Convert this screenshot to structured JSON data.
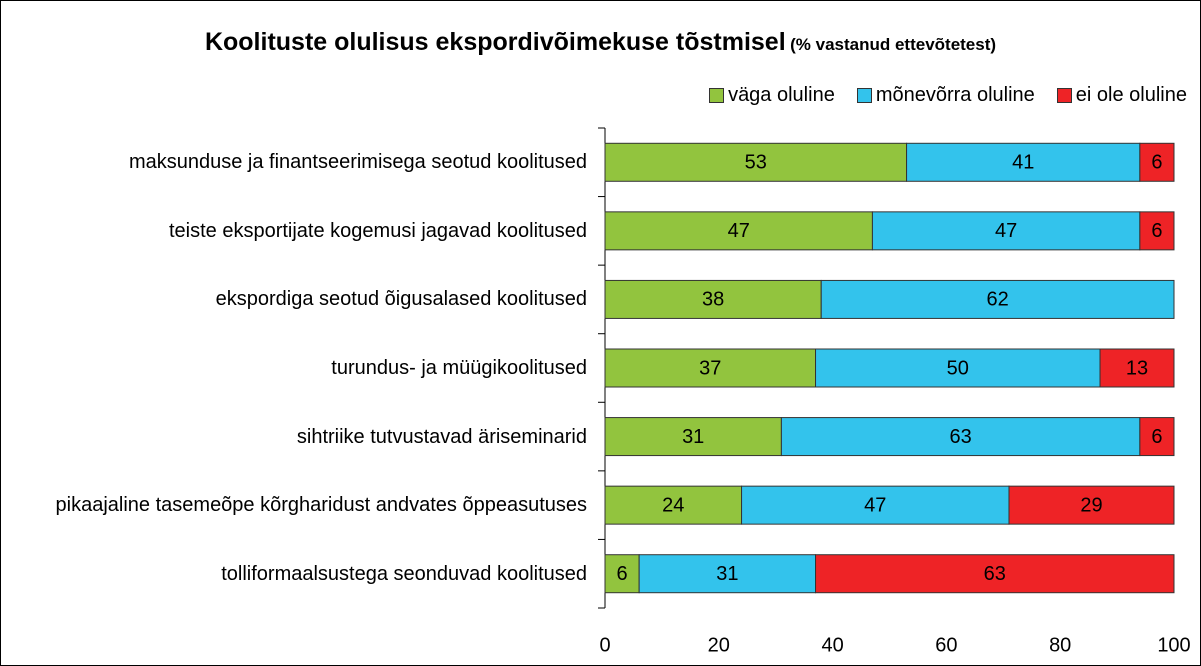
{
  "chart_data": {
    "type": "stacked-bar-horizontal",
    "title": "Koolituste olulisus ekspordivõimekuse tõstmisel",
    "subtitle": "(% vastanud ettevõtetest)",
    "categories": [
      "maksunduse ja finantseerimisega seotud koolitused",
      "teiste eksportijate kogemusi jagavad koolitused",
      "ekspordiga seotud õigusalased koolitused",
      "turundus- ja müügikoolitused",
      "sihtriike tutvustavad äriseminarid",
      "pikaajaline tasemeõpe kõrgharidust andvates õppeasutuses",
      "tolliformaalsustega seonduvad koolitused"
    ],
    "series": [
      {
        "name": "väga oluline",
        "color": "#92c43e",
        "values": [
          53,
          47,
          38,
          37,
          31,
          24,
          6
        ]
      },
      {
        "name": "mõnevõrra oluline",
        "color": "#33c3ec",
        "values": [
          41,
          47,
          62,
          50,
          63,
          47,
          31
        ]
      },
      {
        "name": "ei ole oluline",
        "color": "#ee2326",
        "values": [
          6,
          6,
          null,
          13,
          6,
          29,
          63
        ]
      }
    ],
    "xlim": [
      0,
      100
    ],
    "xticks": [
      0,
      20,
      40,
      60,
      80,
      100
    ],
    "legend": "top-right",
    "grid": false
  }
}
